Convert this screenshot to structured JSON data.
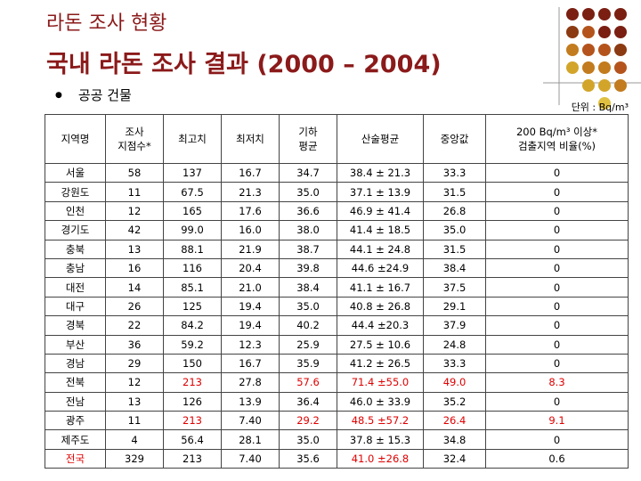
{
  "header": {
    "subtitle": "라돈 조사 현황",
    "title": "국내 라돈 조사 결과 (2000 – 2004)",
    "bullet": "공공 건물",
    "unit": "단위 : Bq/m³"
  },
  "table": {
    "header": [
      "지역명",
      "조사\n지점수*",
      "최고치",
      "최저치",
      "기하\n평균",
      "산술평균",
      "중앙값",
      "200 Bq/m³ 이상*\n검출지역 비율(%)"
    ],
    "rows": [
      [
        "서울",
        "58",
        "137",
        "16.7",
        "34.7",
        "38.4 ± 21.3",
        "33.3",
        "0"
      ],
      [
        "강원도",
        "11",
        "67.5",
        "21.3",
        "35.0",
        "37.1 ± 13.9",
        "31.5",
        "0"
      ],
      [
        "인천",
        "12",
        "165",
        "17.6",
        "36.6",
        "46.9 ± 41.4",
        "26.8",
        "0"
      ],
      [
        "경기도",
        "42",
        "99.0",
        "16.0",
        "38.0",
        "41.4 ± 18.5",
        "35.0",
        "0"
      ],
      [
        "충북",
        "13",
        "88.1",
        "21.9",
        "38.7",
        "44.1 ± 24.8",
        "31.5",
        "0"
      ],
      [
        "충남",
        "16",
        "116",
        "20.4",
        "39.8",
        "44.6 ±24.9",
        "38.4",
        "0"
      ],
      [
        "대전",
        "14",
        "85.1",
        "21.0",
        "38.4",
        "41.1 ± 16.7",
        "37.5",
        "0"
      ],
      [
        "대구",
        "26",
        "125",
        "19.4",
        "35.0",
        "40.8 ± 26.8",
        "29.1",
        "0"
      ],
      [
        "경북",
        "22",
        "84.2",
        "19.4",
        "40.2",
        "44.4 ±20.3",
        "37.9",
        "0"
      ],
      [
        "부산",
        "36",
        "59.2",
        "12.3",
        "25.9",
        "27.5 ± 10.6",
        "24.8",
        "0"
      ],
      [
        "경남",
        "29",
        "150",
        "16.7",
        "35.9",
        "41.2 ± 26.5",
        "33.3",
        "0"
      ],
      [
        "전북",
        "12",
        "213",
        "27.8",
        "57.6",
        "71.4 ±55.0",
        "49.0",
        "8.3"
      ],
      [
        "전남",
        "13",
        "126",
        "13.9",
        "36.4",
        "46.0 ± 33.9",
        "35.2",
        "0"
      ],
      [
        "광주",
        "11",
        "213",
        "7.40",
        "29.2",
        "48.5 ±57.2",
        "26.4",
        "9.1"
      ],
      [
        "제주도",
        "4",
        "56.4",
        "28.1",
        "35.0",
        "37.8 ± 15.3",
        "34.8",
        "0"
      ],
      [
        "전국",
        "329",
        "213",
        "7.40",
        "35.6",
        "41.0 ±26.8",
        "32.4",
        "0.6"
      ]
    ]
  }
}
